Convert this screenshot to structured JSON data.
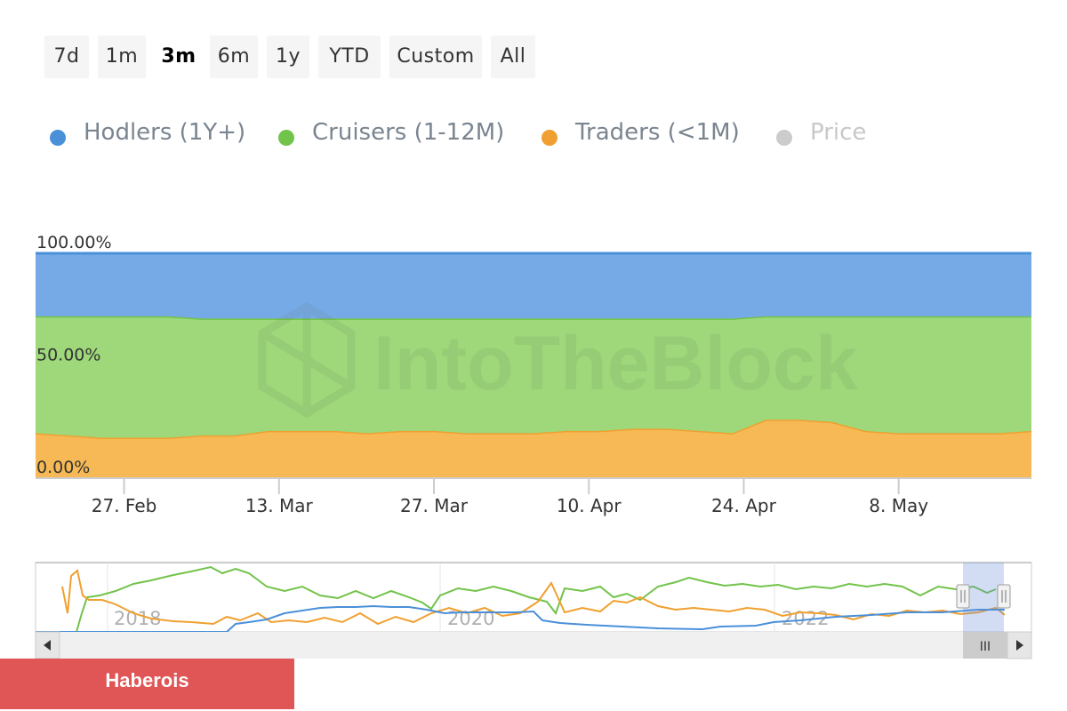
{
  "range_buttons": [
    {
      "label": "7d",
      "active": false
    },
    {
      "label": "1m",
      "active": false
    },
    {
      "label": "3m",
      "active": true
    },
    {
      "label": "6m",
      "active": false
    },
    {
      "label": "1y",
      "active": false
    },
    {
      "label": "YTD",
      "active": false
    },
    {
      "label": "Custom",
      "active": false
    },
    {
      "label": "All",
      "active": false
    }
  ],
  "legend": [
    {
      "label": "Hodlers (1Y+)",
      "color": "#4a90d9",
      "visible": true
    },
    {
      "label": "Cruisers (1-12M)",
      "color": "#72c34a",
      "visible": true
    },
    {
      "label": "Traders (<1M)",
      "color": "#f0a030",
      "visible": true
    },
    {
      "label": "Price",
      "color": "#cccccc",
      "visible": false
    }
  ],
  "watermark": "IntoTheBlock",
  "navigator": {
    "year_labels": [
      "2018",
      "2020",
      "2022"
    ],
    "scroll_handle_label": "III"
  },
  "footer_badge": "Haberois",
  "chart_data": {
    "type": "area",
    "stacking": "percent",
    "y_tick_labels": [
      "0.00%",
      "50.00%",
      "100.00%"
    ],
    "ylim": [
      0,
      100
    ],
    "x_tick_labels": [
      "27. Feb",
      "13. Mar",
      "27. Mar",
      "10. Apr",
      "24. Apr",
      "8. May"
    ],
    "x": [
      "19 Feb",
      "22 Feb",
      "25 Feb",
      "28 Feb",
      "3 Mar",
      "6 Mar",
      "9 Mar",
      "12 Mar",
      "15 Mar",
      "18 Mar",
      "21 Mar",
      "24 Mar",
      "27 Mar",
      "30 Mar",
      "2 Apr",
      "5 Apr",
      "8 Apr",
      "11 Apr",
      "14 Apr",
      "17 Apr",
      "20 Apr",
      "23 Apr",
      "26 Apr",
      "29 Apr",
      "2 May",
      "5 May",
      "8 May",
      "11 May",
      "14 May",
      "17 May",
      "19 May"
    ],
    "series": [
      {
        "name": "Traders (<1M)",
        "color": "#f0a030",
        "fill": "#f7b955",
        "values": [
          20,
          19,
          18,
          18,
          18,
          19,
          19,
          21,
          21,
          21,
          20,
          21,
          21,
          20,
          20,
          20,
          21,
          21,
          22,
          22,
          21,
          20,
          26,
          26,
          25,
          21,
          20,
          20,
          20,
          20,
          21
        ]
      },
      {
        "name": "Cruisers (1-12M)",
        "color": "#72c34a",
        "fill": "#9ed87a",
        "values": [
          52,
          53,
          54,
          54,
          54,
          52,
          52,
          50,
          50,
          50,
          51,
          50,
          50,
          51,
          51,
          51,
          50,
          50,
          49,
          49,
          50,
          51,
          46,
          46,
          47,
          51,
          52,
          52,
          52,
          52,
          51
        ]
      },
      {
        "name": "Hodlers (1Y+)",
        "color": "#4a90d9",
        "fill": "#76aae6",
        "values": [
          28,
          28,
          28,
          28,
          28,
          29,
          29,
          29,
          29,
          29,
          29,
          29,
          29,
          29,
          29,
          29,
          29,
          29,
          29,
          29,
          29,
          29,
          28,
          28,
          28,
          28,
          28,
          28,
          28,
          28,
          28
        ]
      }
    ]
  }
}
